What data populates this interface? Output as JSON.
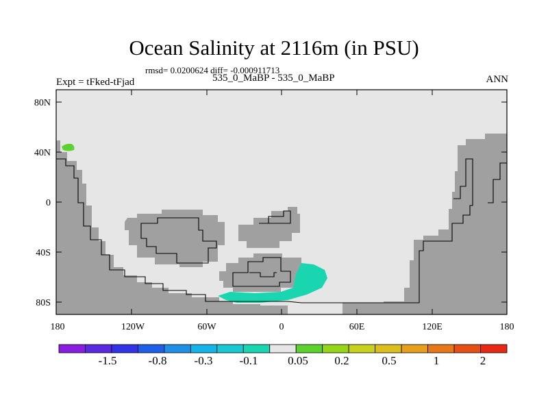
{
  "title": "Ocean Salinity at 2116m (in PSU)",
  "stats": "rmsd= 0.0200624 diff= -0.000911713",
  "case_label": "535_0_MaBP - 535_0_MaBP",
  "experiment": "Expt = tFked-tFjad",
  "season": "ANN",
  "x_ticks": [
    "180",
    "120W",
    "60W",
    "0",
    "60E",
    "120E",
    "180"
  ],
  "y_ticks": [
    "80N",
    "40N",
    "0",
    "40S",
    "80S"
  ],
  "colors": {
    "land": "#a0a0a0",
    "ocean_background": "#e6e6e6",
    "anomaly_positive_small": "#5cd22e",
    "anomaly_negative_small": "#1ad6b0"
  },
  "colorbar": {
    "colors": [
      "#8a1ee0",
      "#5a2ae0",
      "#3333e6",
      "#1f5ee6",
      "#1f90e6",
      "#14b4e6",
      "#19c8d2",
      "#1ad6b0",
      "#e6e6e6",
      "#5cd22e",
      "#96d61a",
      "#c8d21e",
      "#dcbe1e",
      "#e6a01e",
      "#e6781a",
      "#e65014",
      "#e62814"
    ],
    "labels": [
      "-1.5",
      "-0.8",
      "-0.3",
      "-0.1",
      "0.05",
      "0.2",
      "0.5",
      "1",
      "2"
    ]
  }
}
